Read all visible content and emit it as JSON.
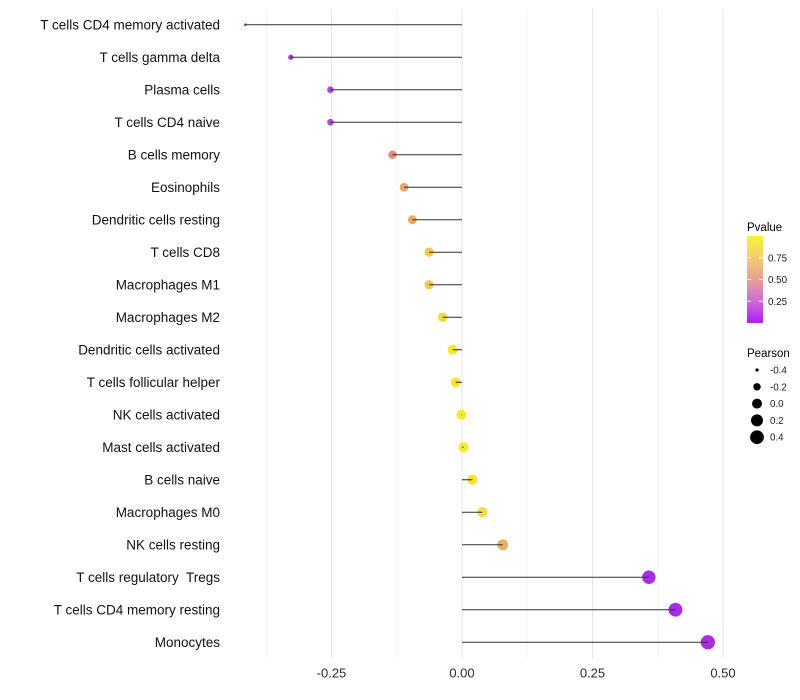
{
  "figure": {
    "background": "#ffffff"
  },
  "chart_data": {
    "type": "scatter",
    "subtype": "lollipop",
    "orientation": "horizontal",
    "title": "",
    "xlabel": "",
    "ylabel": "",
    "xlim": [
      -0.431,
      0.546
    ],
    "baseline_x": 0.0,
    "grid": "vertical major+minor, light gray on white, no axis lines",
    "x_major_ticks": [
      -0.25,
      0.0,
      0.25,
      0.5
    ],
    "x_major_tick_labels": [
      "-0.25",
      "0.00",
      "0.25",
      "0.50"
    ],
    "x_minor_ticks": [
      -0.375,
      -0.125,
      0.125,
      0.375
    ],
    "size_encodes": "Pearson",
    "color_encodes": "Pvalue",
    "points": [
      {
        "label": "T cells CD4 memory activated",
        "pearson": -0.415,
        "color": "#A636E3"
      },
      {
        "label": "T cells gamma delta",
        "pearson": -0.328,
        "color": "#A53BD6"
      },
      {
        "label": "Plasma cells",
        "pearson": -0.252,
        "color": "#B14CCE"
      },
      {
        "label": "T cells CD4 naive",
        "pearson": -0.252,
        "color": "#B14CCE"
      },
      {
        "label": "B cells memory",
        "pearson": -0.133,
        "color": "#DD8F7E"
      },
      {
        "label": "Eosinophils",
        "pearson": -0.111,
        "color": "#E6A56A"
      },
      {
        "label": "Dendritic cells resting",
        "pearson": -0.095,
        "color": "#E9A960"
      },
      {
        "label": "T cells CD8",
        "pearson": -0.063,
        "color": "#EFCC49"
      },
      {
        "label": "Macrophages M1",
        "pearson": -0.063,
        "color": "#EFCC49"
      },
      {
        "label": "Macrophages M2",
        "pearson": -0.037,
        "color": "#F3D93D"
      },
      {
        "label": "Dendritic cells activated",
        "pearson": -0.018,
        "color": "#F7E52E"
      },
      {
        "label": "T cells follicular helper",
        "pearson": -0.012,
        "color": "#F7E52E"
      },
      {
        "label": "NK cells activated",
        "pearson": -0.001,
        "color": "#F8E827"
      },
      {
        "label": "Mast cells activated",
        "pearson": 0.003,
        "color": "#F8E827"
      },
      {
        "label": "B cells naive",
        "pearson": 0.02,
        "color": "#F6E230"
      },
      {
        "label": "Macrophages M0",
        "pearson": 0.039,
        "color": "#F4DC48"
      },
      {
        "label": "NK cells resting",
        "pearson": 0.078,
        "color": "#ECAE5E"
      },
      {
        "label": "T cells regulatory  Tregs",
        "pearson": 0.358,
        "color": "#A92BE2"
      },
      {
        "label": "T cells CD4 memory resting",
        "pearson": 0.409,
        "color": "#A92BE2"
      },
      {
        "label": "Monocytes",
        "pearson": 0.471,
        "color": "#A92BE2"
      }
    ],
    "legends": {
      "pvalue": {
        "title": "Pvalue",
        "tick_labels": [
          "0.75",
          "0.50",
          "0.25"
        ],
        "tick_values": [
          0.75,
          0.5,
          0.25
        ],
        "range": [
          0,
          1
        ],
        "gradient_top_to_bottom": [
          "#FBF235",
          "#F5CC72",
          "#E89F93",
          "#CF6BD7",
          "#A91EF8"
        ]
      },
      "pearson": {
        "title": "Pearson",
        "tick_labels": [
          "-0.4",
          "-0.2",
          "0.0",
          "0.2",
          "0.4"
        ],
        "tick_values": [
          -0.4,
          -0.2,
          0.0,
          0.2,
          0.4
        ],
        "dot_color": "#000000"
      }
    },
    "style": {
      "segment_color": "#303030",
      "grid_major_color": "#E6E6E6",
      "grid_minor_color": "#F3F3F3"
    }
  }
}
